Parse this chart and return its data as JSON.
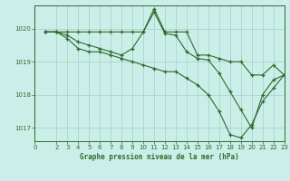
{
  "title": "Graphe pression niveau de la mer (hPa)",
  "bg_color": "#cceee8",
  "grid_color": "#aad4ce",
  "line_color": "#2d6a2d",
  "marker": "+",
  "xlim": [
    0,
    23
  ],
  "ylim": [
    1016.6,
    1020.7
  ],
  "yticks": [
    1017,
    1018,
    1019,
    1020
  ],
  "xticks": [
    0,
    2,
    3,
    4,
    5,
    6,
    7,
    8,
    9,
    10,
    11,
    12,
    13,
    14,
    15,
    16,
    17,
    18,
    19,
    20,
    21,
    22,
    23
  ],
  "series": [
    {
      "x": [
        1,
        2,
        3,
        4,
        5,
        6,
        7,
        8,
        9,
        10,
        11,
        12,
        13,
        14,
        15,
        16,
        17,
        18,
        19,
        20,
        21,
        22,
        23
      ],
      "y": [
        1019.9,
        1019.9,
        1019.9,
        1019.9,
        1019.9,
        1019.9,
        1019.9,
        1019.9,
        1019.9,
        1019.9,
        1020.6,
        1019.9,
        1019.9,
        1019.9,
        1019.2,
        1019.2,
        1019.1,
        1019.0,
        1019.0,
        1018.6,
        1018.6,
        1018.9,
        1018.6
      ]
    },
    {
      "x": [
        1,
        2,
        3,
        4,
        5,
        6,
        7,
        8,
        9,
        10,
        11,
        12,
        13,
        14,
        15,
        16,
        17,
        18,
        19,
        20,
        21,
        22,
        23
      ],
      "y": [
        1019.9,
        1019.9,
        1019.7,
        1019.4,
        1019.3,
        1019.3,
        1019.2,
        1019.1,
        1019.0,
        1018.9,
        1018.8,
        1018.7,
        1018.7,
        1018.5,
        1018.3,
        1018.0,
        1017.5,
        1016.8,
        1016.7,
        1017.1,
        1017.8,
        1018.2,
        1018.6
      ]
    },
    {
      "x": [
        1,
        2,
        3,
        4,
        5,
        6,
        7,
        8,
        9,
        10,
        11,
        12,
        13,
        14,
        15,
        16,
        17,
        18,
        19,
        20,
        21,
        22,
        23
      ],
      "y": [
        1019.9,
        1019.9,
        1019.8,
        1019.6,
        1019.5,
        1019.4,
        1019.3,
        1019.2,
        1019.4,
        1019.9,
        1020.5,
        1019.85,
        1019.8,
        1019.3,
        1019.1,
        1019.05,
        1018.65,
        1018.1,
        1017.55,
        1017.0,
        1018.0,
        1018.45,
        1018.6
      ]
    }
  ]
}
